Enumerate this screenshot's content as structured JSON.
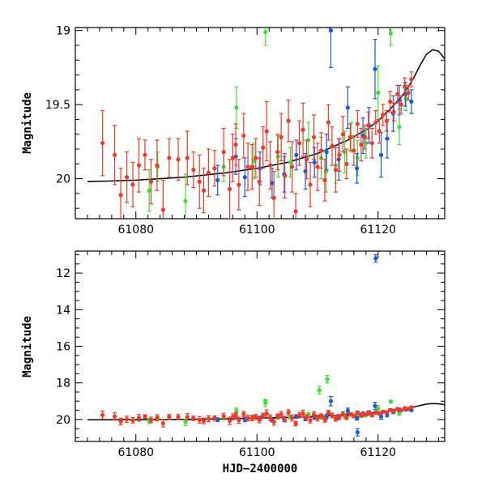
{
  "chart_data": {
    "type": "scatter",
    "colors": {
      "red": "#f03a28",
      "blue": "#1a5ae0",
      "green": "#3ee03a",
      "curve": "#000000"
    },
    "xlabel": "HJD−2400000",
    "panels": [
      {
        "name": "zoom",
        "ylabel": "Magnitude",
        "xlim": [
          61070,
          61131
        ],
        "ylim": [
          20.27,
          18.98
        ],
        "xticks": [
          61080,
          61100,
          61120
        ],
        "xtick_labels": [
          "61080",
          "61100",
          "61120"
        ],
        "yticks": [
          19,
          19.5,
          20
        ],
        "ytick_labels": [
          "19",
          "19.5",
          "20"
        ]
      },
      {
        "name": "full",
        "ylabel": "Magnitude",
        "xlim": [
          61070,
          61131
        ],
        "ylim": [
          21.2,
          10.8
        ],
        "xticks": [
          61080,
          61100,
          61120
        ],
        "xtick_labels": [
          "61080",
          "61100",
          "61120"
        ],
        "yticks": [
          12,
          14,
          16,
          18,
          20
        ],
        "ytick_labels": [
          "12",
          "14",
          "16",
          "18",
          "20"
        ]
      }
    ],
    "model_curve": [
      [
        61072,
        20.02
      ],
      [
        61080,
        20.01
      ],
      [
        61088,
        19.99
      ],
      [
        61095,
        19.96
      ],
      [
        61100,
        19.93
      ],
      [
        61105,
        19.89
      ],
      [
        61110,
        19.83
      ],
      [
        61115,
        19.74
      ],
      [
        61118,
        19.67
      ],
      [
        61120,
        19.61
      ],
      [
        61122,
        19.53
      ],
      [
        61124,
        19.44
      ],
      [
        61125,
        19.38
      ],
      [
        61126,
        19.31
      ],
      [
        61127,
        19.23
      ],
      [
        61128,
        19.16
      ],
      [
        61129,
        19.13
      ],
      [
        61130,
        19.14
      ],
      [
        61131,
        19.19
      ]
    ],
    "series": [
      {
        "name": "red",
        "points": [
          [
            61074.5,
            19.76,
            0.22
          ],
          [
            61076.5,
            19.84,
            0.2
          ],
          [
            61077.5,
            20.11,
            0.18
          ],
          [
            61078.5,
            19.99,
            0.17
          ],
          [
            61079.5,
            20.04,
            0.15
          ],
          [
            61080.5,
            19.91,
            0.18
          ],
          [
            61081.5,
            19.84,
            0.1
          ],
          [
            61082.5,
            20.02,
            0.15
          ],
          [
            61083.5,
            19.91,
            0.17
          ],
          [
            61084.5,
            20.21,
            0.2
          ],
          [
            61085.5,
            19.86,
            0.13
          ],
          [
            61087.0,
            19.87,
            0.14
          ],
          [
            61088.5,
            19.86,
            0.18
          ],
          [
            61089.5,
            19.94,
            0.12
          ],
          [
            61090.5,
            20.02,
            0.18
          ],
          [
            61091.2,
            20.08,
            0.15
          ],
          [
            61092.0,
            19.96,
            0.16
          ],
          [
            61093.0,
            19.93,
            0.12
          ],
          [
            61094.5,
            19.82,
            0.16
          ],
          [
            61095.5,
            20.07,
            0.2
          ],
          [
            61096.0,
            19.86,
            0.16
          ],
          [
            61096.5,
            19.77,
            0.14
          ],
          [
            61097.0,
            20.04,
            0.17
          ],
          [
            61097.8,
            19.71,
            0.15
          ],
          [
            61098.5,
            19.92,
            0.16
          ],
          [
            61099.2,
            19.92,
            0.15
          ],
          [
            61099.8,
            19.86,
            0.13
          ],
          [
            61100.4,
            20.02,
            0.16
          ],
          [
            61101.0,
            19.79,
            0.14
          ],
          [
            61101.6,
            19.68,
            0.2
          ],
          [
            61102.2,
            19.91,
            0.16
          ],
          [
            61102.8,
            20.13,
            0.18
          ],
          [
            61103.4,
            19.82,
            0.12
          ],
          [
            61104.0,
            19.72,
            0.16
          ],
          [
            61104.6,
            19.98,
            0.15
          ],
          [
            61105.2,
            19.61,
            0.14
          ],
          [
            61105.8,
            19.92,
            0.17
          ],
          [
            61106.4,
            20.22,
            0.12
          ],
          [
            61107.0,
            19.76,
            0.15
          ],
          [
            61107.6,
            19.67,
            0.18
          ],
          [
            61108.2,
            19.87,
            0.13
          ],
          [
            61108.8,
            20.04,
            0.15
          ],
          [
            61109.4,
            19.72,
            0.15
          ],
          [
            61110.0,
            19.92,
            0.16
          ],
          [
            61110.6,
            19.81,
            0.12
          ],
          [
            61111.2,
            20.01,
            0.14
          ],
          [
            61111.8,
            19.62,
            0.12
          ],
          [
            61112.4,
            19.78,
            0.13
          ],
          [
            61113.0,
            19.94,
            0.15
          ],
          [
            61113.6,
            19.84,
            0.11
          ],
          [
            61114.2,
            19.7,
            0.12
          ],
          [
            61114.8,
            19.9,
            0.1
          ],
          [
            61115.4,
            19.72,
            0.09
          ],
          [
            61116.0,
            19.81,
            0.1
          ],
          [
            61116.6,
            19.63,
            0.09
          ],
          [
            61117.2,
            19.77,
            0.11
          ],
          [
            61117.8,
            19.72,
            0.08
          ],
          [
            61118.4,
            19.64,
            0.09
          ],
          [
            61119.0,
            19.76,
            0.1
          ],
          [
            61119.6,
            19.62,
            0.08
          ],
          [
            61120.2,
            19.68,
            0.08
          ],
          [
            61120.8,
            19.57,
            0.07
          ],
          [
            61121.4,
            19.61,
            0.07
          ],
          [
            61122.0,
            19.48,
            0.07
          ],
          [
            61122.6,
            19.55,
            0.06
          ],
          [
            61123.2,
            19.43,
            0.06
          ],
          [
            61123.8,
            19.5,
            0.06
          ],
          [
            61124.4,
            19.38,
            0.06
          ],
          [
            61125.0,
            19.42,
            0.05
          ],
          [
            61125.5,
            19.33,
            0.05
          ]
        ]
      },
      {
        "name": "blue",
        "points": [
          [
            61093.5,
            20.01,
            0.1
          ],
          [
            61096.5,
            19.85,
            0.12
          ],
          [
            61098.0,
            19.99,
            0.13
          ],
          [
            61100.5,
            19.93,
            0.11
          ],
          [
            61102.5,
            20.03,
            0.1
          ],
          [
            61104.5,
            19.97,
            0.12
          ],
          [
            61106.5,
            19.84,
            0.1
          ],
          [
            61108.0,
            19.95,
            0.12
          ],
          [
            61109.5,
            19.89,
            0.1
          ],
          [
            61111.5,
            19.82,
            0.12
          ],
          [
            61112.2,
            19.0,
            0.25
          ],
          [
            61113.5,
            19.87,
            0.14
          ],
          [
            61115.0,
            19.52,
            0.14
          ],
          [
            61116.5,
            19.93,
            0.1
          ],
          [
            61117.5,
            19.71,
            0.12
          ],
          [
            61118.5,
            19.64,
            0.12
          ],
          [
            61119.5,
            19.26,
            0.2
          ],
          [
            61120.5,
            19.84,
            0.15
          ],
          [
            61121.5,
            19.73,
            0.13
          ],
          [
            61122.5,
            19.56,
            0.12
          ],
          [
            61123.5,
            19.47,
            0.1
          ],
          [
            61124.5,
            19.43,
            0.08
          ],
          [
            61125.5,
            19.48,
            0.08
          ]
        ]
      },
      {
        "name": "green",
        "points": [
          [
            61082.2,
            20.08,
            0.14
          ],
          [
            61083.6,
            19.92,
            0.1
          ],
          [
            61088.2,
            20.15,
            0.18
          ],
          [
            61094.5,
            19.92,
            0.1
          ],
          [
            61096.6,
            19.52,
            0.14
          ],
          [
            61099.5,
            19.88,
            0.12
          ],
          [
            61101.4,
            19.01,
            0.09
          ],
          [
            61103.5,
            19.85,
            0.14
          ],
          [
            61105.5,
            19.89,
            0.1
          ],
          [
            61108.5,
            19.74,
            0.12
          ],
          [
            61110.6,
            19.86,
            0.14
          ],
          [
            61111.4,
            19.95,
            0.14
          ],
          [
            61113.0,
            19.91,
            0.12
          ],
          [
            61114.5,
            19.82,
            0.14
          ],
          [
            61115.6,
            19.72,
            0.1
          ],
          [
            61116.6,
            19.86,
            0.12
          ],
          [
            61118.0,
            19.76,
            0.1
          ],
          [
            61120.0,
            19.42,
            0.18
          ],
          [
            61122.1,
            19.02,
            0.08
          ],
          [
            61123.5,
            19.65,
            0.12
          ],
          [
            61124.6,
            19.46,
            0.08
          ]
        ]
      }
    ],
    "full_panel_extra_points": [
      {
        "series": "blue",
        "x": 61119.6,
        "y": 11.2,
        "err": 0.2
      },
      {
        "series": "green",
        "x": 61101.4,
        "y": 19.1,
        "err": 0.2
      },
      {
        "series": "green",
        "x": 61110.3,
        "y": 18.4,
        "err": 0.2
      },
      {
        "series": "green",
        "x": 61111.6,
        "y": 17.8,
        "err": 0.2
      },
      {
        "series": "blue",
        "x": 61116.6,
        "y": 20.7,
        "err": 0.2
      }
    ]
  }
}
